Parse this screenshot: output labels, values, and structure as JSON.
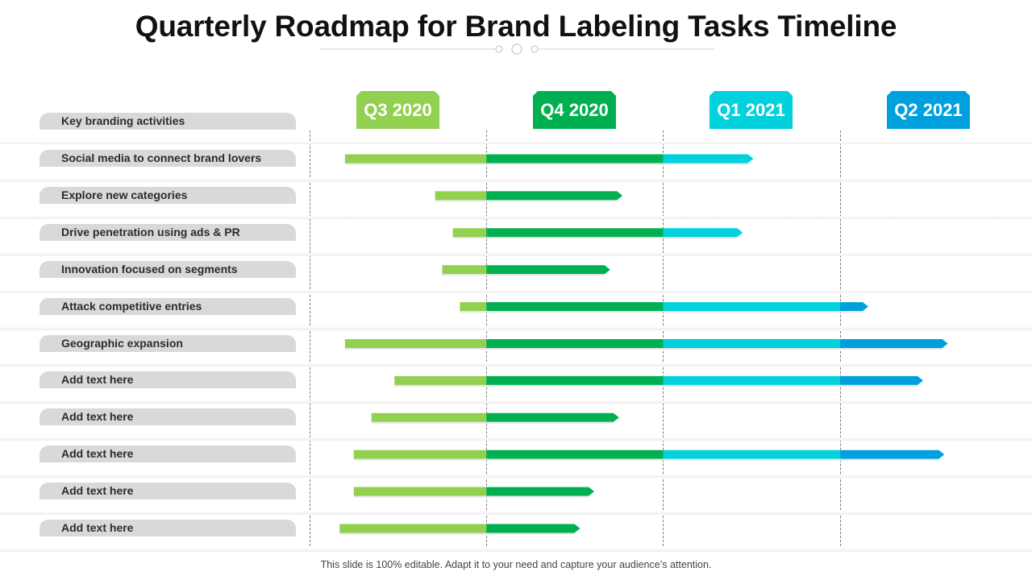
{
  "title": "Quarterly Roadmap for Brand Labeling Tasks Timeline",
  "footer": "This slide is 100% editable. Adapt it to your need and capture your audience’s attention.",
  "quarters": [
    {
      "label": "Q3 2020",
      "color": "#92d050"
    },
    {
      "label": "Q4 2020",
      "color": "#00b050"
    },
    {
      "label": "Q1 2021",
      "color": "#00d1dd"
    },
    {
      "label": "Q2 2021",
      "color": "#00a0de"
    }
  ],
  "header_label": "Key branding activities",
  "tasks": [
    {
      "label": "Social media to connect brand lovers",
      "start": 0.2,
      "end": 2.51
    },
    {
      "label": "Explore new categories",
      "start": 0.71,
      "end": 1.77
    },
    {
      "label": "Drive penetration using ads & PR",
      "start": 0.81,
      "end": 2.45
    },
    {
      "label": "Innovation focused on segments",
      "start": 0.75,
      "end": 1.7
    },
    {
      "label": "Attack competitive entries",
      "start": 0.85,
      "end": 3.16
    },
    {
      "label": "Geographic expansion",
      "start": 0.2,
      "end": 3.61
    },
    {
      "label": "Add text here",
      "start": 0.48,
      "end": 3.47
    },
    {
      "label": "Add text here",
      "start": 0.35,
      "end": 1.75
    },
    {
      "label": "Add text here",
      "start": 0.25,
      "end": 3.59
    },
    {
      "label": "Add text here",
      "start": 0.25,
      "end": 1.61
    },
    {
      "label": "Add text here",
      "start": 0.17,
      "end": 1.53
    }
  ]
}
